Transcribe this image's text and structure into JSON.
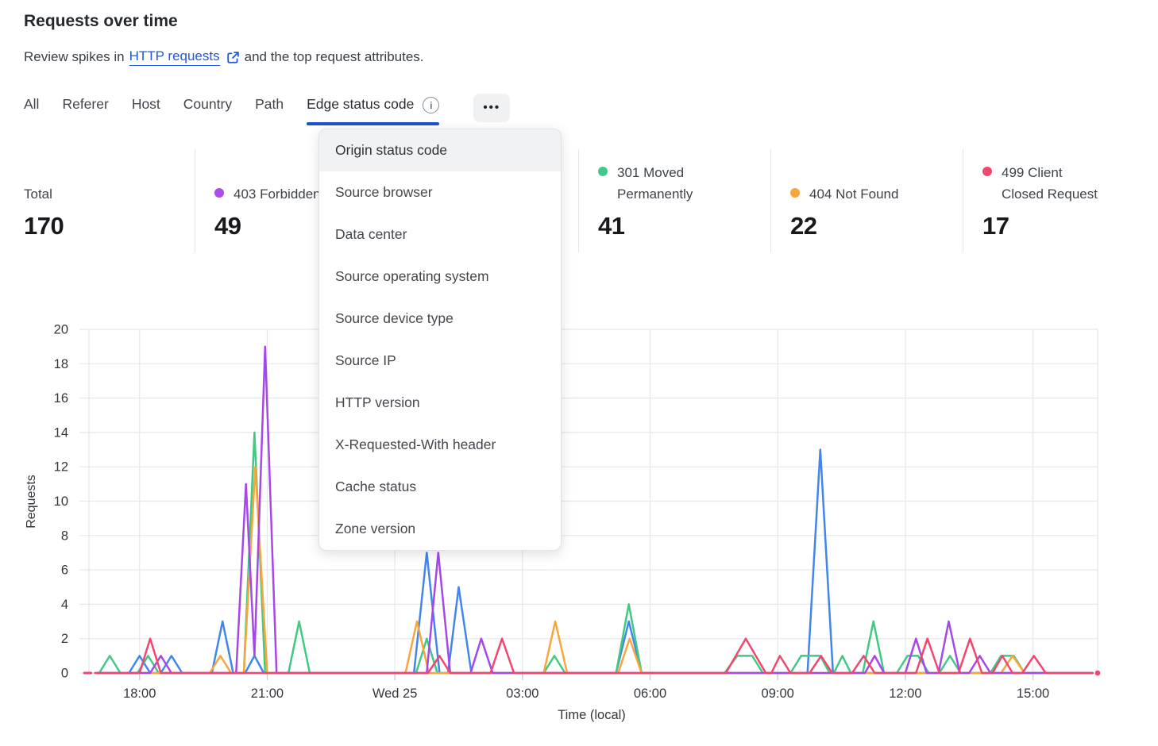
{
  "header": {
    "title": "Requests over time",
    "subtitle_prefix": "Review spikes in",
    "link_text": "HTTP requests",
    "subtitle_suffix": "and the top request attributes."
  },
  "tabs": {
    "items": [
      {
        "label": "All"
      },
      {
        "label": "Referer"
      },
      {
        "label": "Host"
      },
      {
        "label": "Country"
      },
      {
        "label": "Path"
      },
      {
        "label": "Edge status code",
        "active": true,
        "info": true
      }
    ],
    "more_label": "•••"
  },
  "dropdown": {
    "highlighted_index": 0,
    "items": [
      "Origin status code",
      "Source browser",
      "Data center",
      "Source operating system",
      "Source device type",
      "Source IP",
      "HTTP version",
      "X-Requested-With header",
      "Cache status",
      "Zone version"
    ]
  },
  "stats": [
    {
      "label": "Total",
      "value": "170",
      "color": null
    },
    {
      "label": "403 Forbidden",
      "value": "49",
      "color": "#a94ce8"
    },
    {
      "label": "301 Moved\nPermanently",
      "value": "41",
      "color": "#3fc98b"
    },
    {
      "label": "404 Not Found",
      "value": "22",
      "color": "#f7a63c"
    },
    {
      "label": "499 Client\nClosed Request",
      "value": "17",
      "color": "#f3466f"
    }
  ],
  "theme": {
    "link_blue": "#2158d8",
    "tab_underline": "#1d50d8",
    "grid": "#e5e7ea",
    "axis_text": "#33373c",
    "tick_stub": "#cbced3"
  },
  "chart_data": {
    "type": "line",
    "xlabel": "Time (local)",
    "ylabel": "Requests",
    "ylim": [
      0,
      20
    ],
    "yticks": [
      0,
      2,
      4,
      6,
      8,
      10,
      12,
      14,
      16,
      18,
      20
    ],
    "grid": true,
    "x_unit": "hours relative to Wed 25 00:00, 15-min interval data",
    "x_domain": [
      -7.19,
      16.52
    ],
    "xticks": [
      {
        "t": -6,
        "label": "18:00"
      },
      {
        "t": -3,
        "label": "21:00"
      },
      {
        "t": 0,
        "label": "Wed 25"
      },
      {
        "t": 3,
        "label": "03:00"
      },
      {
        "t": 6,
        "label": "06:00"
      },
      {
        "t": 9,
        "label": "09:00"
      },
      {
        "t": 12,
        "label": "12:00"
      },
      {
        "t": 15,
        "label": "15:00"
      }
    ],
    "series": [
      {
        "name": "unlabeled-blue",
        "color": "#4285ec",
        "points": [
          [
            -7,
            0
          ],
          [
            -6.25,
            0
          ],
          [
            -6,
            1
          ],
          [
            -5.75,
            0
          ],
          [
            -5.5,
            0
          ],
          [
            -5.25,
            1
          ],
          [
            -5,
            0
          ],
          [
            -4.3,
            0
          ],
          [
            -4.05,
            3
          ],
          [
            -3.8,
            0
          ],
          [
            -3.52,
            0
          ],
          [
            -3.3,
            1
          ],
          [
            -3.08,
            0
          ],
          [
            0.45,
            0
          ],
          [
            0.75,
            7
          ],
          [
            1.05,
            0
          ],
          [
            1.25,
            0
          ],
          [
            1.5,
            5
          ],
          [
            1.8,
            0
          ],
          [
            5.2,
            0
          ],
          [
            5.5,
            3
          ],
          [
            5.8,
            0
          ],
          [
            9.7,
            0
          ],
          [
            10,
            13
          ],
          [
            10.3,
            0
          ],
          [
            16.4,
            0
          ]
        ]
      },
      {
        "name": "301-moved-permanently",
        "color": "#41c983",
        "points": [
          [
            -7,
            0
          ],
          [
            -6.95,
            0
          ],
          [
            -6.7,
            1
          ],
          [
            -6.45,
            0
          ],
          [
            -6.05,
            0
          ],
          [
            -5.8,
            1
          ],
          [
            -5.55,
            0
          ],
          [
            -3.55,
            0
          ],
          [
            -3.3,
            14
          ],
          [
            -3.05,
            0
          ],
          [
            -2.5,
            0
          ],
          [
            -2.25,
            3
          ],
          [
            -2,
            0
          ],
          [
            0.5,
            0
          ],
          [
            0.75,
            2
          ],
          [
            1,
            0
          ],
          [
            3.5,
            0
          ],
          [
            3.75,
            1
          ],
          [
            4,
            0
          ],
          [
            5.2,
            0
          ],
          [
            5.5,
            4
          ],
          [
            5.8,
            0
          ],
          [
            7.75,
            0
          ],
          [
            8.05,
            1
          ],
          [
            8.4,
            1
          ],
          [
            8.65,
            0
          ],
          [
            9.3,
            0
          ],
          [
            9.55,
            1
          ],
          [
            10,
            1
          ],
          [
            10.22,
            0
          ],
          [
            10.32,
            0
          ],
          [
            10.52,
            1
          ],
          [
            10.72,
            0
          ],
          [
            11,
            0
          ],
          [
            11.25,
            3
          ],
          [
            11.5,
            0
          ],
          [
            11.8,
            0
          ],
          [
            12.05,
            1
          ],
          [
            12.3,
            1
          ],
          [
            12.55,
            0
          ],
          [
            12.8,
            0
          ],
          [
            13.05,
            1
          ],
          [
            13.3,
            0
          ],
          [
            14,
            0
          ],
          [
            14.25,
            1
          ],
          [
            14.55,
            1
          ],
          [
            14.8,
            0
          ],
          [
            16.4,
            0
          ]
        ]
      },
      {
        "name": "404-not-found",
        "color": "#f7a63c",
        "points": [
          [
            -7,
            0
          ],
          [
            -4.35,
            0
          ],
          [
            -4.1,
            1
          ],
          [
            -3.85,
            0
          ],
          [
            -3.55,
            0
          ],
          [
            -3.28,
            12
          ],
          [
            -3,
            0
          ],
          [
            0.25,
            0
          ],
          [
            0.52,
            3
          ],
          [
            0.8,
            0
          ],
          [
            3.5,
            0
          ],
          [
            3.77,
            3
          ],
          [
            4.05,
            0
          ],
          [
            5.25,
            0
          ],
          [
            5.52,
            2
          ],
          [
            5.8,
            0
          ],
          [
            14.25,
            0
          ],
          [
            14.52,
            1
          ],
          [
            14.8,
            0
          ],
          [
            16.4,
            0
          ]
        ]
      },
      {
        "name": "403-forbidden",
        "color": "#a648e8",
        "points": [
          [
            -7,
            0
          ],
          [
            -5.75,
            0
          ],
          [
            -5.5,
            1
          ],
          [
            -5.25,
            0
          ],
          [
            -3.73,
            0
          ],
          [
            -3.5,
            11
          ],
          [
            -3.3,
            1
          ],
          [
            -3.05,
            19
          ],
          [
            -2.78,
            0
          ],
          [
            0.75,
            0
          ],
          [
            1.02,
            7
          ],
          [
            1.3,
            0
          ],
          [
            1.78,
            0
          ],
          [
            2.03,
            2
          ],
          [
            2.3,
            0
          ],
          [
            11.05,
            0
          ],
          [
            11.28,
            1
          ],
          [
            11.5,
            0
          ],
          [
            12,
            0
          ],
          [
            12.25,
            2
          ],
          [
            12.5,
            0
          ],
          [
            12.78,
            0
          ],
          [
            13.02,
            3
          ],
          [
            13.28,
            0
          ],
          [
            13.5,
            0
          ],
          [
            13.75,
            1
          ],
          [
            14,
            0
          ],
          [
            16.4,
            0
          ]
        ]
      },
      {
        "name": "499-client-closed-request",
        "color": "#f3466f",
        "lead_dash": [
          [
            -7.3,
            0
          ],
          [
            -7.14,
            0
          ]
        ],
        "end_dot_t": 16.52,
        "points": [
          [
            -7.05,
            0
          ],
          [
            -6,
            0
          ],
          [
            -5.75,
            2
          ],
          [
            -5.5,
            0
          ],
          [
            0.78,
            0
          ],
          [
            1.05,
            1
          ],
          [
            1.3,
            0
          ],
          [
            2.25,
            0
          ],
          [
            2.52,
            2
          ],
          [
            2.8,
            0
          ],
          [
            7.78,
            0
          ],
          [
            8.25,
            2
          ],
          [
            8.72,
            0
          ],
          [
            8.85,
            0
          ],
          [
            9.05,
            1
          ],
          [
            9.3,
            0
          ],
          [
            9.75,
            0
          ],
          [
            10.02,
            1
          ],
          [
            10.28,
            0
          ],
          [
            10.75,
            0
          ],
          [
            11.02,
            1
          ],
          [
            11.28,
            0
          ],
          [
            12.25,
            0
          ],
          [
            12.52,
            2
          ],
          [
            12.8,
            0
          ],
          [
            13.25,
            0
          ],
          [
            13.52,
            2
          ],
          [
            13.8,
            0
          ],
          [
            14.05,
            0
          ],
          [
            14.28,
            1
          ],
          [
            14.52,
            0
          ],
          [
            14.75,
            0
          ],
          [
            15.02,
            1
          ],
          [
            15.3,
            0
          ],
          [
            16.4,
            0
          ]
        ]
      }
    ]
  }
}
